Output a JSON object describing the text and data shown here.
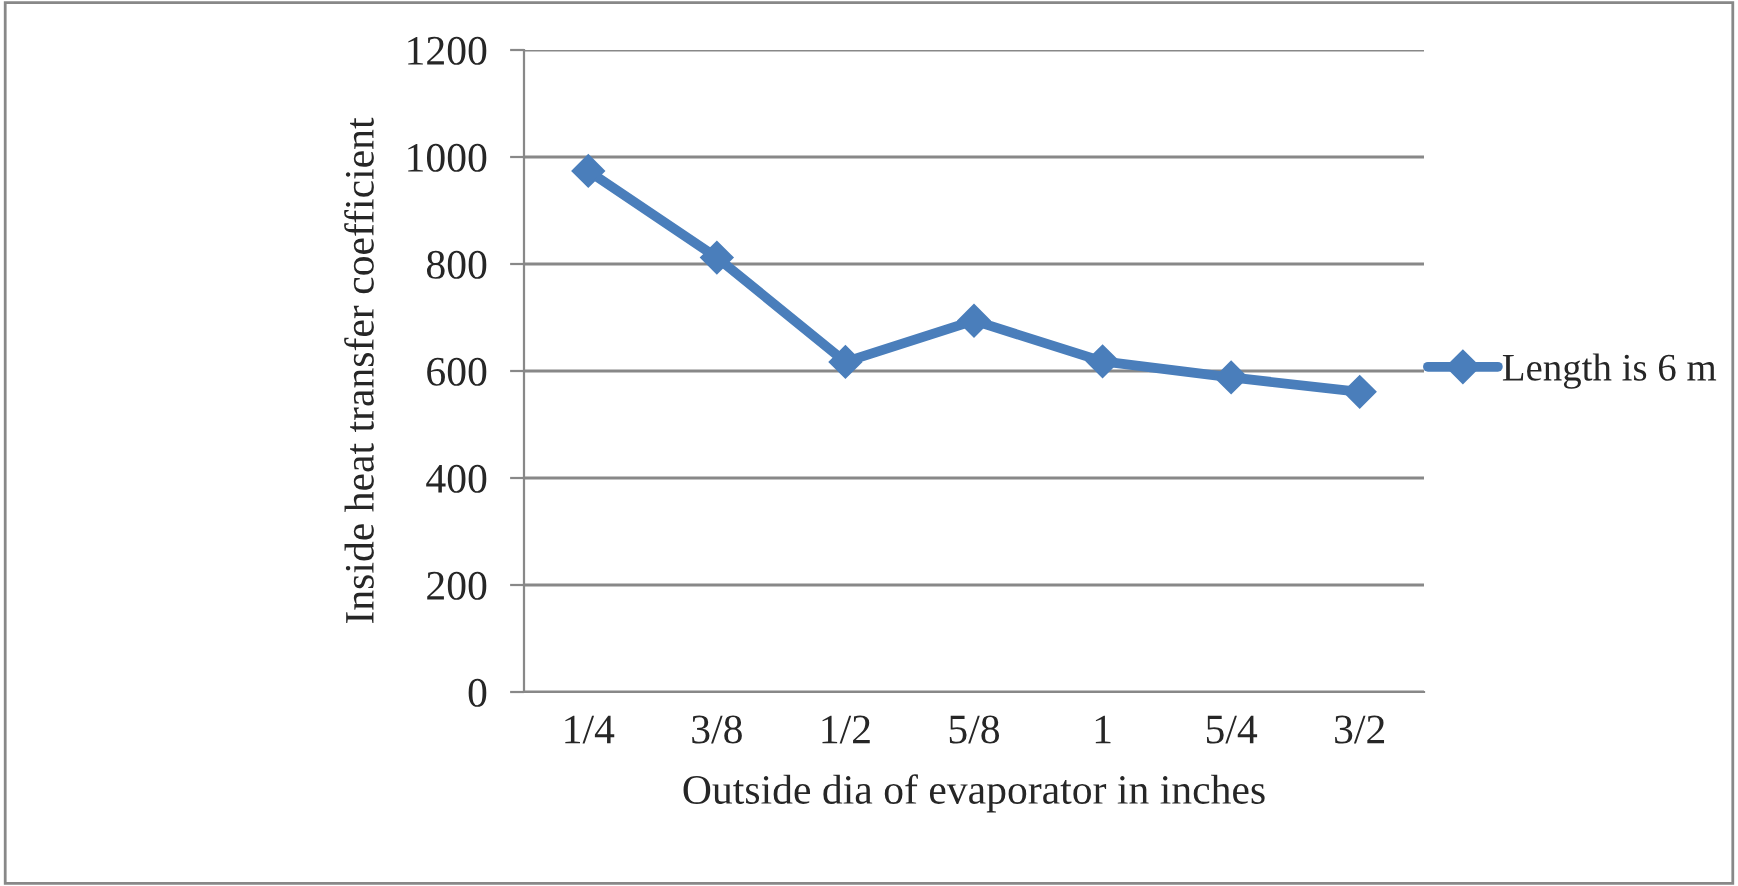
{
  "chart_data": {
    "type": "line",
    "xlabel": "Outside dia of evaporator in inches",
    "ylabel": "Inside heat transfer coefficient",
    "categories": [
      "1/4",
      "3/8",
      "1/2",
      "5/8",
      "1",
      "5/4",
      "3/2"
    ],
    "series": [
      {
        "name": "Length is 6 m",
        "color": "#4a7ebb",
        "values": [
          974,
          812,
          617,
          694,
          618,
          588,
          561
        ]
      }
    ],
    "ylim": [
      0,
      1200
    ],
    "yticks": [
      0,
      200,
      400,
      600,
      800,
      1000,
      1200
    ],
    "grid": "y",
    "legend": "right",
    "marker": "diamond",
    "line_style": "solid"
  }
}
